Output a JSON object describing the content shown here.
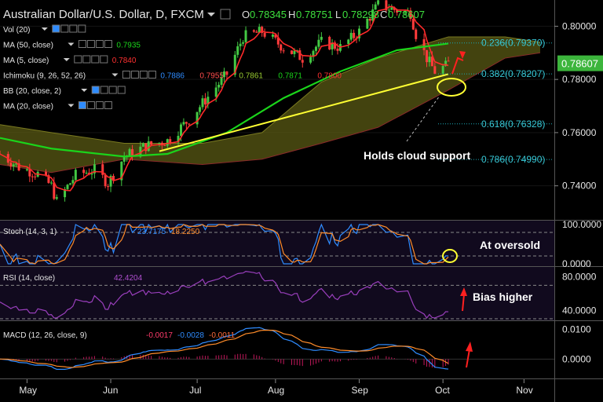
{
  "header": {
    "symbol": "Australian Dollar/U.S. Dollar, D, FXCM",
    "o_label": "O",
    "o": "0.78345",
    "h_label": "H",
    "h": "0.78751",
    "l_label": "L",
    "l": "0.78298",
    "c_label": "C",
    "c": "0.78607"
  },
  "legends": [
    {
      "name": "Vol (20)",
      "values": [],
      "colors": []
    },
    {
      "name": "MA (50, close)",
      "values": [
        "0.7935"
      ],
      "colors": [
        "#1bd41b"
      ]
    },
    {
      "name": "MA (5, close)",
      "values": [
        "0.7840"
      ],
      "colors": [
        "#ff3030"
      ]
    },
    {
      "name": "Ichimoku (9, 26, 52, 26)",
      "values": [
        "0.7886",
        "0.7955",
        "0.7861",
        "0.7871",
        "0.7800"
      ],
      "colors": [
        "#2f8cff",
        "#ff4d4d",
        "#9acd32",
        "#1bd41b",
        "#ff3030"
      ]
    },
    {
      "name": "BB (20, close, 2)",
      "values": [],
      "colors": []
    },
    {
      "name": "MA (20, close)",
      "values": [],
      "colors": []
    }
  ],
  "colors": {
    "bull": "#43c843",
    "bear": "#ff3b3b",
    "ma50": "#1bd41b",
    "ma5": "#ff2a2a",
    "cloud": "#5a5a14",
    "trend": "#ffff33",
    "accent": "#ffffff",
    "price_box": "#3cb53c"
  },
  "annotations": {
    "cloud_support": "Holds cloud support",
    "oversold": "At oversold",
    "bias": "Bias higher"
  },
  "chart_data": [
    {
      "type": "candlestick",
      "panel": "price",
      "ylim": [
        0.7275,
        0.8075
      ],
      "y_ticks": [
        "0.80000",
        "0.78000",
        "0.76000",
        "0.74000"
      ],
      "y_tick_values": [
        0.8,
        0.78,
        0.76,
        0.74
      ],
      "last_price": "0.78607",
      "last_price_value": 0.78607,
      "x_labels": [
        "May",
        "Jun",
        "Jul",
        "Aug",
        "Sep",
        "Oct",
        "Nov"
      ],
      "price_path": [
        [
          "2017-04-21",
          0.752
        ],
        [
          "2017-04-28",
          0.747
        ],
        [
          "2017-05-05",
          0.7445
        ],
        [
          "2017-05-10",
          0.74
        ],
        [
          "2017-05-12",
          0.734
        ],
        [
          "2017-05-19",
          0.744
        ],
        [
          "2017-05-26",
          0.746
        ],
        [
          "2017-05-31",
          0.741
        ],
        [
          "2017-06-06",
          0.751
        ],
        [
          "2017-06-14",
          0.755
        ],
        [
          "2017-06-22",
          0.757
        ],
        [
          "2017-06-30",
          0.765
        ],
        [
          "2017-07-14",
          0.782
        ],
        [
          "2017-07-20",
          0.796
        ],
        [
          "2017-07-27",
          0.798
        ],
        [
          "2017-08-04",
          0.792
        ],
        [
          "2017-08-11",
          0.788
        ],
        [
          "2017-08-18",
          0.794
        ],
        [
          "2017-08-25",
          0.792
        ],
        [
          "2017-09-01",
          0.798
        ],
        [
          "2017-09-08",
          0.808
        ],
        [
          "2017-09-15",
          0.806
        ],
        [
          "2017-09-20",
          0.805
        ],
        [
          "2017-09-22",
          0.797
        ],
        [
          "2017-09-26",
          0.788
        ],
        [
          "2017-09-29",
          0.783
        ],
        [
          "2017-10-03",
          0.785
        ],
        [
          "2017-10-04",
          0.7861
        ]
      ],
      "ma50": [
        [
          "2017-04-21",
          0.758
        ],
        [
          "2017-05-10",
          0.754
        ],
        [
          "2017-06-06",
          0.751
        ],
        [
          "2017-06-22",
          0.752
        ],
        [
          "2017-07-14",
          0.76
        ],
        [
          "2017-08-04",
          0.773
        ],
        [
          "2017-08-25",
          0.783
        ],
        [
          "2017-09-15",
          0.791
        ],
        [
          "2017-10-04",
          0.7935
        ]
      ],
      "cloud_upper": [
        [
          "2017-04-21",
          0.763
        ],
        [
          "2017-05-10",
          0.76
        ],
        [
          "2017-06-06",
          0.756
        ],
        [
          "2017-07-05",
          0.756
        ],
        [
          "2017-07-27",
          0.76
        ],
        [
          "2017-08-18",
          0.779
        ],
        [
          "2017-09-08",
          0.788
        ],
        [
          "2017-10-04",
          0.796
        ],
        [
          "2017-10-25",
          0.796
        ],
        [
          "2017-11-07",
          0.794
        ]
      ],
      "cloud_lower": [
        [
          "2017-04-21",
          0.748
        ],
        [
          "2017-05-10",
          0.745
        ],
        [
          "2017-06-06",
          0.75
        ],
        [
          "2017-07-05",
          0.748
        ],
        [
          "2017-07-27",
          0.75
        ],
        [
          "2017-08-18",
          0.756
        ],
        [
          "2017-09-08",
          0.762
        ],
        [
          "2017-10-04",
          0.776
        ],
        [
          "2017-10-25",
          0.788
        ],
        [
          "2017-11-07",
          0.79
        ]
      ],
      "trendline": [
        [
          "2017-06-19",
          0.753
        ],
        [
          "2017-10-04",
          0.782
        ]
      ],
      "fib_levels": [
        {
          "label": "0.236(0.79370)",
          "value": 0.7937
        },
        {
          "label": "0.382(0.78207)",
          "value": 0.78207
        },
        {
          "label": "0.618(0.76328)",
          "value": 0.76328
        },
        {
          "label": "0.786(0.74990)",
          "value": 0.7499
        }
      ]
    },
    {
      "type": "line",
      "panel": "stochastic",
      "name": "Stoch (14, 3, 1)",
      "values": [
        "23.7175",
        "18.2250"
      ],
      "ylim": [
        0,
        100
      ],
      "y_ticks": [
        "100.0000",
        "0.0000"
      ],
      "levels": [
        80,
        20
      ]
    },
    {
      "type": "line",
      "panel": "rsi",
      "name": "RSI (14, close)",
      "values": [
        "42.4204"
      ],
      "ylim": [
        30,
        90
      ],
      "y_ticks": [
        "80.0000",
        "40.0000"
      ],
      "levels": [
        70,
        30
      ]
    },
    {
      "type": "bar",
      "panel": "macd",
      "name": "MACD (12, 26, close, 9)",
      "values": [
        "-0.0017",
        "-0.0028",
        "-0.0011"
      ],
      "ylim": [
        -0.006,
        0.012
      ],
      "y_ticks": [
        "0.0100",
        "0.0000"
      ]
    }
  ]
}
